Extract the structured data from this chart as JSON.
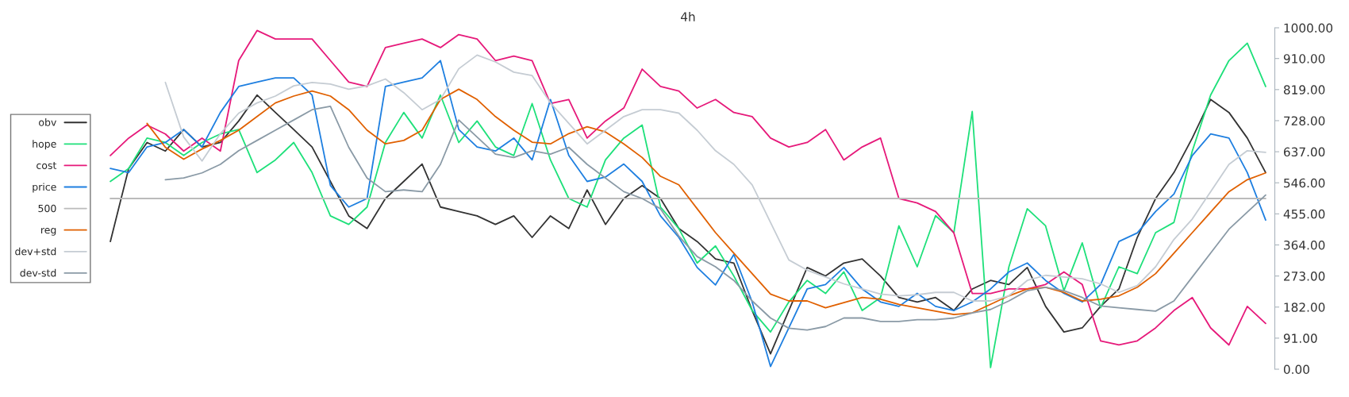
{
  "chart_data": {
    "type": "line",
    "title": "4h",
    "categories": [
      null,
      null,
      null,
      null,
      null,
      null,
      null,
      null,
      null,
      null,
      null,
      null,
      null,
      null,
      null,
      null,
      null,
      null,
      null,
      null,
      null,
      null,
      null,
      null,
      null,
      null,
      null,
      null,
      null,
      null,
      null,
      null,
      null,
      null,
      null,
      null,
      null,
      null,
      null,
      null,
      null,
      null,
      null,
      null,
      null,
      null,
      null,
      null,
      null,
      null,
      null,
      null,
      null,
      null,
      null,
      null,
      null,
      null,
      null,
      null,
      null,
      null,
      null,
      null
    ],
    "series": [
      {
        "name": "obv",
        "color": "#333333",
        "values": [
          374,
          588,
          664,
          639,
          702,
          651,
          664,
          727,
          803,
          752,
          702,
          651,
          550,
          449,
          412,
          500,
          550,
          601,
          475,
          462,
          449,
          424,
          449,
          386,
          449,
          412,
          525,
          424,
          500,
          538,
          500,
          412,
          374,
          323,
          311,
          172,
          45,
          172,
          298,
          273,
          311,
          323,
          273,
          210,
          197,
          210,
          172,
          235,
          260,
          248,
          298,
          184,
          109,
          121,
          184,
          235,
          386,
          500,
          576,
          677,
          790,
          752,
          677,
          576
        ]
      },
      {
        "name": "hope",
        "color": "#1ee07a",
        "values": [
          550,
          588,
          677,
          664,
          626,
          664,
          689,
          702,
          576,
          613,
          664,
          576,
          449,
          424,
          475,
          664,
          752,
          677,
          803,
          664,
          727,
          651,
          626,
          778,
          613,
          500,
          475,
          613,
          677,
          715,
          475,
          412,
          311,
          361,
          273,
          172,
          109,
          197,
          260,
          222,
          285,
          172,
          210,
          420,
          300,
          450,
          400,
          755,
          5,
          300,
          470,
          420,
          230,
          370,
          180,
          300,
          280,
          400,
          430,
          639,
          803,
          904,
          955,
          828
        ]
      },
      {
        "name": "cost",
        "color": "#e6197a",
        "values": [
          626,
          677,
          715,
          689,
          639,
          677,
          639,
          904,
          992,
          967,
          967,
          967,
          904,
          841,
          828,
          942,
          955,
          967,
          942,
          980,
          967,
          904,
          917,
          904,
          778,
          790,
          677,
          727,
          765,
          879,
          828,
          815,
          765,
          790,
          752,
          740,
          677,
          651,
          664,
          702,
          613,
          651,
          677,
          500,
          487,
          462,
          399,
          222,
          222,
          235,
          235,
          248,
          285,
          248,
          83,
          71,
          83,
          121,
          172,
          210,
          121,
          71,
          184,
          134
        ]
      },
      {
        "name": "price",
        "color": "#1e7fe0",
        "values": [
          588,
          576,
          651,
          664,
          702,
          651,
          752,
          828,
          841,
          853,
          853,
          803,
          538,
          475,
          500,
          828,
          841,
          853,
          904,
          702,
          651,
          639,
          677,
          613,
          790,
          626,
          550,
          563,
          601,
          550,
          449,
          386,
          298,
          247,
          336,
          197,
          8,
          121,
          235,
          248,
          298,
          235,
          197,
          184,
          222,
          184,
          172,
          197,
          235,
          285,
          311,
          260,
          222,
          197,
          248,
          374,
          399,
          462,
          513,
          626,
          689,
          677,
          576,
          437
        ]
      },
      {
        "name": "500",
        "color": "#bbbbbb",
        "values": [
          500,
          500,
          500,
          500,
          500,
          500,
          500,
          500,
          500,
          500,
          500,
          500,
          500,
          500,
          500,
          500,
          500,
          500,
          500,
          500,
          500,
          500,
          500,
          500,
          500,
          500,
          500,
          500,
          500,
          500,
          500,
          500,
          500,
          500,
          500,
          500,
          500,
          500,
          500,
          500,
          500,
          500,
          500,
          500,
          500,
          500,
          500,
          500,
          500,
          500,
          500,
          500,
          500,
          500,
          500,
          500,
          500,
          500,
          500,
          500,
          500,
          500,
          500,
          500
        ]
      },
      {
        "name": "reg",
        "color": "#e06000",
        "values": [
          null,
          null,
          720,
          650,
          615,
          645,
          670,
          700,
          740,
          780,
          800,
          815,
          800,
          760,
          700,
          660,
          670,
          700,
          790,
          820,
          790,
          740,
          700,
          665,
          660,
          690,
          710,
          695,
          660,
          620,
          565,
          540,
          470,
          400,
          340,
          280,
          220,
          200,
          200,
          180,
          195,
          210,
          205,
          190,
          180,
          170,
          160,
          165,
          190,
          215,
          235,
          240,
          225,
          200,
          205,
          215,
          240,
          280,
          340,
          400,
          460,
          520,
          555,
          575
        ]
      },
      {
        "name": "dev+std",
        "color": "#c5ccd3",
        "values": [
          null,
          null,
          null,
          840,
          680,
          610,
          690,
          750,
          780,
          800,
          830,
          840,
          835,
          820,
          830,
          850,
          810,
          760,
          790,
          880,
          920,
          900,
          870,
          860,
          780,
          720,
          660,
          700,
          740,
          760,
          760,
          750,
          700,
          640,
          600,
          540,
          430,
          320,
          290,
          270,
          250,
          235,
          220,
          215,
          218,
          225,
          225,
          200,
          200,
          215,
          260,
          275,
          270,
          265,
          250,
          225,
          245,
          300,
          380,
          440,
          520,
          600,
          640,
          635
        ]
      },
      {
        "name": "dev-std",
        "color": "#8a9aa6",
        "values": [
          null,
          null,
          null,
          555,
          560,
          575,
          600,
          640,
          670,
          700,
          730,
          760,
          770,
          650,
          560,
          520,
          525,
          520,
          600,
          730,
          680,
          630,
          620,
          640,
          630,
          650,
          600,
          560,
          520,
          500,
          470,
          390,
          330,
          300,
          260,
          200,
          150,
          120,
          115,
          125,
          150,
          150,
          140,
          140,
          145,
          145,
          150,
          165,
          175,
          200,
          230,
          240,
          230,
          210,
          185,
          180,
          175,
          170,
          200,
          270,
          340,
          410,
          460,
          510
        ]
      }
    ],
    "ylim": [
      0,
      1000
    ],
    "yticks": [
      {
        "value": 0,
        "label": "0.00"
      },
      {
        "value": 91,
        "label": "91.00"
      },
      {
        "value": 182,
        "label": "182.00"
      },
      {
        "value": 273,
        "label": "273.00"
      },
      {
        "value": 364,
        "label": "364.00"
      },
      {
        "value": 455,
        "label": "455.00"
      },
      {
        "value": 546,
        "label": "546.00"
      },
      {
        "value": 637,
        "label": "637.00"
      },
      {
        "value": 728,
        "label": "728.00"
      },
      {
        "value": 819,
        "label": "819.00"
      },
      {
        "value": 910,
        "label": "910.00"
      },
      {
        "value": 1000,
        "label": "1000.00"
      }
    ],
    "tick_labels": "y",
    "legend": "left",
    "grid": false,
    "marker": "none",
    "line_style": "solid"
  }
}
